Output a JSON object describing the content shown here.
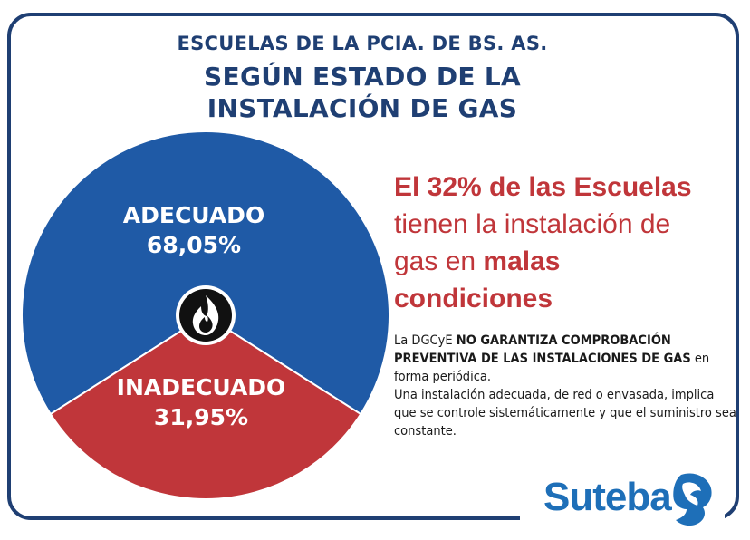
{
  "header": {
    "line1": "ESCUELAS DE LA PCIA. DE BS. AS.",
    "line2": "SEGÚN ESTADO DE LA",
    "line3": "INSTALACIÓN DE GAS"
  },
  "chart_data": {
    "type": "pie",
    "slices": [
      {
        "label": "ADECUADO",
        "value": 68.05,
        "value_label": "68,05%",
        "color": "#1f5aa6"
      },
      {
        "label": "INADECUADO",
        "value": 31.95,
        "value_label": "31,95%",
        "color": "#c0363a"
      }
    ],
    "center_icon": "flame-icon"
  },
  "headline": {
    "part1": "El  32% de las Escuelas",
    "part2": "tienen la instalación de",
    "part3": "gas en ",
    "part4": "malas",
    "part5": "condiciones"
  },
  "body": {
    "part1": "La DGCyE ",
    "part2": "NO GARANTIZA COMPROBACIÓN PREVENTIVA DE LAS INSTALACIONES DE GAS",
    "part3": " en forma periódica.",
    "part4": "Una instalación adecuada, de red o envasada, implica que se controle sistemáticamente y que el suministro sea constante."
  },
  "logo": {
    "text": "Suteba"
  },
  "colors": {
    "navy": "#1f3f73",
    "blue": "#1f5aa6",
    "red": "#c0363a",
    "logo_blue": "#1e6fb8"
  }
}
